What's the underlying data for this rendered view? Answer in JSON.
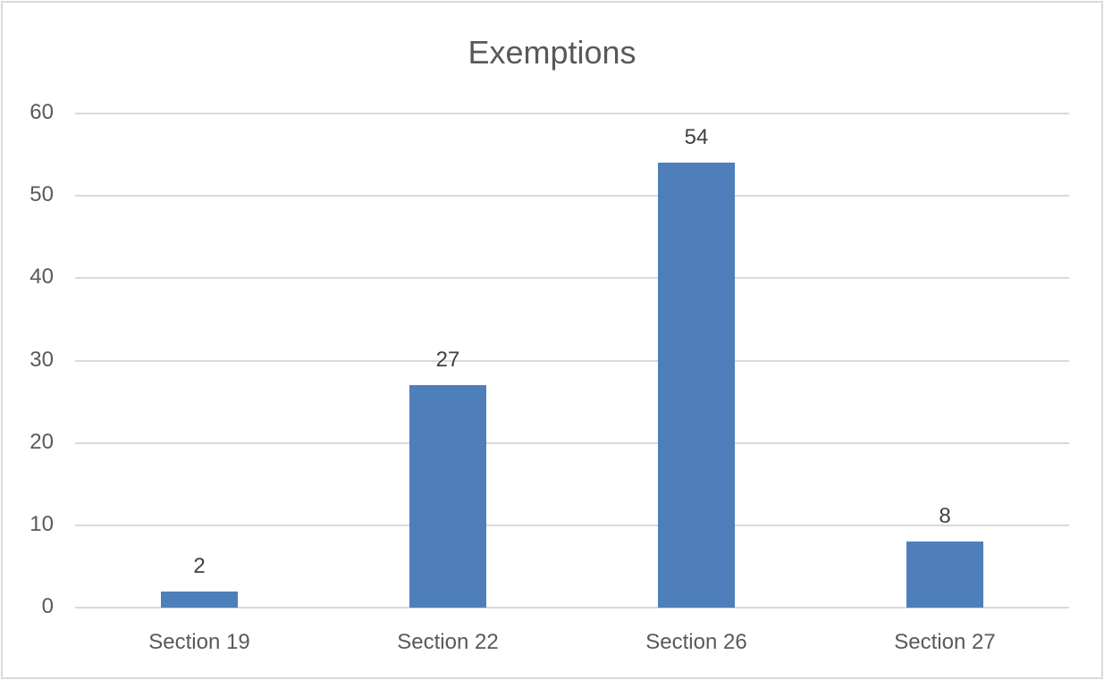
{
  "chart_data": {
    "type": "bar",
    "title": "Exemptions",
    "categories": [
      "Section 19",
      "Section 22",
      "Section 26",
      "Section 27"
    ],
    "values": [
      2,
      27,
      54,
      8
    ],
    "xlabel": "",
    "ylabel": "",
    "ylim": [
      0,
      60
    ],
    "yticks": [
      "0",
      "10",
      "20",
      "30",
      "40",
      "50",
      "60"
    ],
    "grid": true,
    "legend": null,
    "data_labels": [
      "2",
      "27",
      "54",
      "8"
    ],
    "bar_color": "#4e7fbb"
  }
}
